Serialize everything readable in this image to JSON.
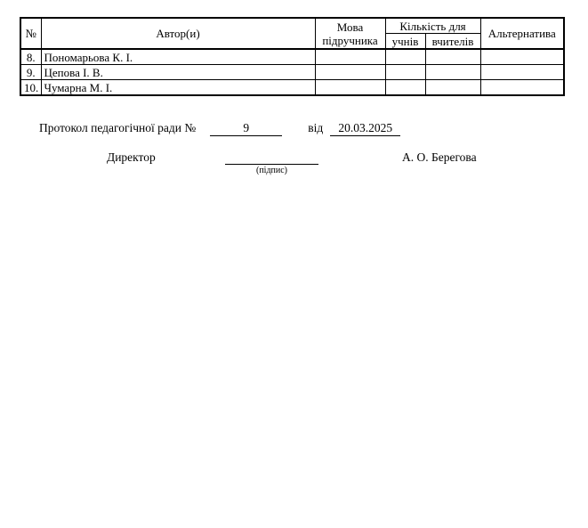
{
  "colors": {
    "page_background": "#ffffff",
    "text": "#000000",
    "border": "#000000"
  },
  "table": {
    "headers": {
      "num": "№",
      "authors": "Автор(и)",
      "language": "Мова підручника",
      "quantity_group": "Кількість для",
      "students": "учнів",
      "teachers": "вчителів",
      "alternative": "Альтернатива"
    },
    "rows": [
      {
        "num": "8.",
        "author": "Пономарьова К. І.",
        "language": "",
        "students": "",
        "teachers": "",
        "alternative": ""
      },
      {
        "num": "9.",
        "author": "Цепова І. В.",
        "language": "",
        "students": "",
        "teachers": "",
        "alternative": ""
      },
      {
        "num": "10.",
        "author": "Чумарна М. І.",
        "language": "",
        "students": "",
        "teachers": "",
        "alternative": ""
      }
    ]
  },
  "protocol": {
    "label": "Протокол педагогічної ради №",
    "number": "9",
    "from_label": "від",
    "date": "20.03.2025"
  },
  "signature": {
    "role": "Директор",
    "caption": "(підпис)",
    "name": "А. О. Берегова"
  }
}
